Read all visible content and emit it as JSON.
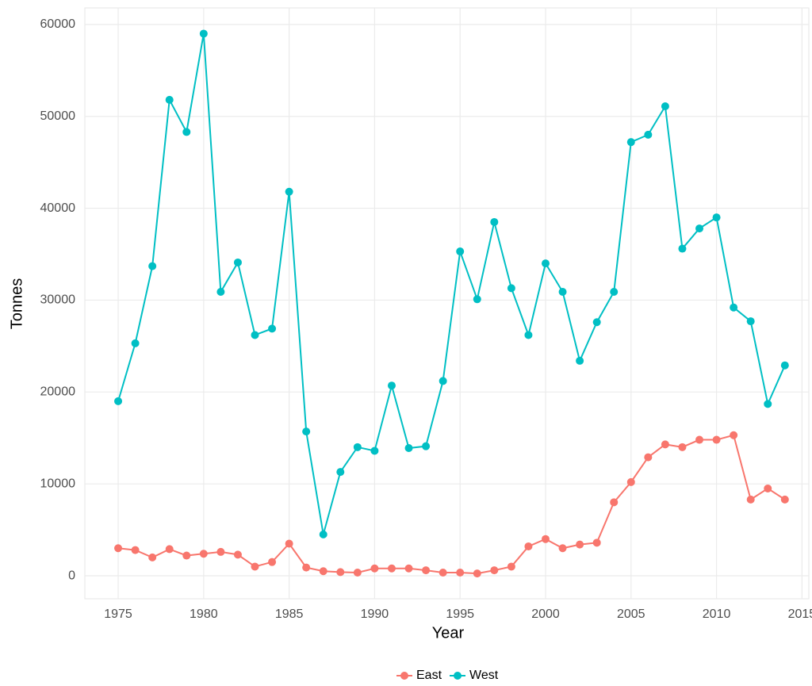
{
  "chart_data": {
    "type": "line",
    "x_label": "Year",
    "y_label": "Tonnes",
    "x": [
      1975,
      1976,
      1977,
      1978,
      1979,
      1980,
      1981,
      1982,
      1983,
      1984,
      1985,
      1986,
      1987,
      1988,
      1989,
      1990,
      1991,
      1992,
      1993,
      1994,
      1995,
      1996,
      1997,
      1998,
      1999,
      2000,
      2001,
      2002,
      2003,
      2004,
      2005,
      2006,
      2007,
      2008,
      2009,
      2010,
      2011,
      2012,
      2013,
      2014
    ],
    "series": [
      {
        "name": "East",
        "color": "#f8766d",
        "values": [
          3000,
          2800,
          2000,
          2900,
          2200,
          2400,
          2600,
          2300,
          1000,
          1500,
          3500,
          900,
          500,
          400,
          350,
          800,
          800,
          800,
          600,
          350,
          350,
          250,
          600,
          1000,
          3200,
          4000,
          3000,
          3400,
          3600,
          8000,
          10200,
          12900,
          14300,
          14000,
          14800,
          14800,
          15300,
          8300,
          9500,
          8300
        ]
      },
      {
        "name": "West",
        "color": "#00bfc4",
        "values": [
          19000,
          25300,
          33700,
          51800,
          48300,
          59000,
          30900,
          34100,
          26200,
          26900,
          41800,
          15700,
          4500,
          11300,
          14000,
          13600,
          20700,
          13900,
          14100,
          21200,
          35300,
          30100,
          38500,
          31300,
          26200,
          34000,
          30900,
          23400,
          27600,
          30900,
          47200,
          48000,
          51100,
          35600,
          37800,
          39000,
          29200,
          27700,
          18700,
          22900
        ]
      }
    ],
    "xlim": [
      1973.05,
      2015.4
    ],
    "ylim": [
      -2500,
      61800
    ],
    "xticks": [
      1975,
      1980,
      1985,
      1990,
      1995,
      2000,
      2005,
      2010,
      2015
    ],
    "yticks": [
      0,
      10000,
      20000,
      30000,
      40000,
      50000,
      60000
    ],
    "grid": true,
    "legend": "bottom"
  }
}
